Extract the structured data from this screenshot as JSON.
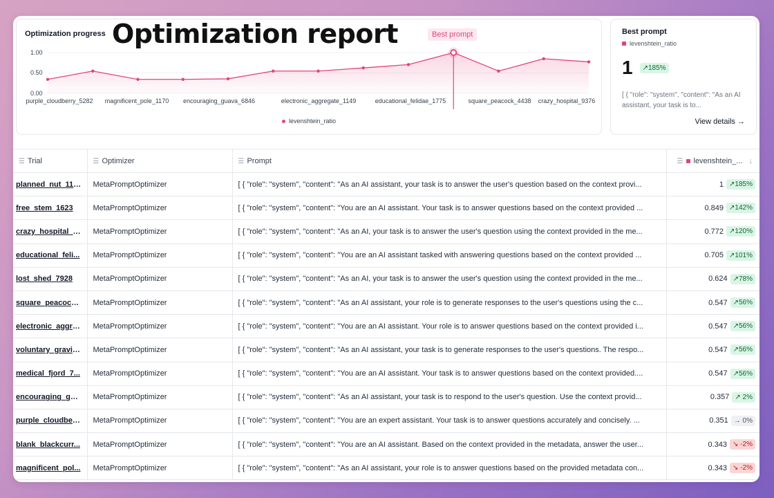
{
  "overlay_title": "Optimization report",
  "chart_panel": {
    "title": "Optimization progress",
    "best_badge": "Best prompt",
    "legend": "levenshtein_ratio"
  },
  "chart_data": {
    "type": "area",
    "title": "Optimization progress",
    "series": [
      {
        "name": "levenshtein_ratio",
        "values": [
          0.343,
          0.547,
          0.343,
          0.343,
          0.357,
          0.547,
          0.547,
          0.624,
          0.705,
          1.0,
          0.547,
          0.849,
          0.772
        ]
      }
    ],
    "xtick_labels": [
      "purple_cloudberry_5282",
      "magnificent_pole_1170",
      "encouraging_guava_6846",
      "electronic_aggregate_1149",
      "educational_felidae_1775",
      "square_peacock_4438",
      "crazy_hospital_9376"
    ],
    "ytick_labels": [
      "1.00",
      "0.50",
      "0.00"
    ],
    "ylim": [
      0,
      1
    ],
    "best_index": 9,
    "legend_position": "bottom"
  },
  "best_panel": {
    "title": "Best prompt",
    "metric": "levenshtein_ratio",
    "value": "1",
    "change": "↗185%",
    "prompt": "[ { \"role\": \"system\", \"content\": \"As an AI assistant, your task is to...",
    "link": "View details →"
  },
  "table": {
    "headers": {
      "trial": "Trial",
      "optimizer": "Optimizer",
      "prompt": "Prompt",
      "metric": "levenshtein_..."
    },
    "rows": [
      {
        "trial": "planned_nut_1124",
        "optimizer": "MetaPromptOptimizer",
        "prompt": "[ { \"role\": \"system\", \"content\": \"As an AI assistant, your task is to answer the user's question based on the context provi...",
        "value": "1",
        "change": "↗185%",
        "trend": "up"
      },
      {
        "trial": "free_stem_1623",
        "optimizer": "MetaPromptOptimizer",
        "prompt": "[ { \"role\": \"system\", \"content\": \"You are an AI assistant. Your task is to answer questions based on the context provided ...",
        "value": "0.849",
        "change": "↗142%",
        "trend": "up"
      },
      {
        "trial": "crazy_hospital_9...",
        "optimizer": "MetaPromptOptimizer",
        "prompt": "[ { \"role\": \"system\", \"content\": \"As an AI, your task is to answer the user's question using the context provided in the me...",
        "value": "0.772",
        "change": "↗120%",
        "trend": "up"
      },
      {
        "trial": "educational_feli...",
        "optimizer": "MetaPromptOptimizer",
        "prompt": "[ { \"role\": \"system\", \"content\": \"You are an AI assistant tasked with answering questions based on the context provided ...",
        "value": "0.705",
        "change": "↗101%",
        "trend": "up"
      },
      {
        "trial": "lost_shed_7928",
        "optimizer": "MetaPromptOptimizer",
        "prompt": "[ { \"role\": \"system\", \"content\": \"As an AI, your task is to answer the user's question using the context provided in the me...",
        "value": "0.624",
        "change": "↗78%",
        "trend": "up"
      },
      {
        "trial": "square_peacock...",
        "optimizer": "MetaPromptOptimizer",
        "prompt": "[ { \"role\": \"system\", \"content\": \"As an AI assistant, your role is to generate responses to the user's questions using the c...",
        "value": "0.547",
        "change": "↗56%",
        "trend": "up"
      },
      {
        "trial": "electronic_aggre...",
        "optimizer": "MetaPromptOptimizer",
        "prompt": "[ { \"role\": \"system\", \"content\": \"You are an AI assistant. Your role is to answer questions based on the context provided i...",
        "value": "0.547",
        "change": "↗56%",
        "trend": "up"
      },
      {
        "trial": "voluntary_gravit...",
        "optimizer": "MetaPromptOptimizer",
        "prompt": "[ { \"role\": \"system\", \"content\": \"As an AI assistant, your task is to generate responses to the user's questions. The respo...",
        "value": "0.547",
        "change": "↗56%",
        "trend": "up"
      },
      {
        "trial": "medical_fjord_7...",
        "optimizer": "MetaPromptOptimizer",
        "prompt": "[ { \"role\": \"system\", \"content\": \"You are an AI assistant. Your task is to answer questions based on the context provided....",
        "value": "0.547",
        "change": "↗56%",
        "trend": "up"
      },
      {
        "trial": "encouraging_gu...",
        "optimizer": "MetaPromptOptimizer",
        "prompt": "[ { \"role\": \"system\", \"content\": \"As an AI assistant, your task is to respond to the user's question. Use the context provid...",
        "value": "0.357",
        "change": "↗ 2%",
        "trend": "up"
      },
      {
        "trial": "purple_cloudber...",
        "optimizer": "MetaPromptOptimizer",
        "prompt": "[ { \"role\": \"system\", \"content\": \"You are an expert assistant. Your task is to answer questions accurately and concisely. ...",
        "value": "0.351",
        "change": "→ 0%",
        "trend": "flat"
      },
      {
        "trial": "blank_blackcurr...",
        "optimizer": "MetaPromptOptimizer",
        "prompt": "[ { \"role\": \"system\", \"content\": \"You are an AI assistant. Based on the context provided in the metadata, answer the user...",
        "value": "0.343",
        "change": "↘ -2%",
        "trend": "down"
      },
      {
        "trial": "magnificent_pol...",
        "optimizer": "MetaPromptOptimizer",
        "prompt": "[ { \"role\": \"system\", \"content\": \"As an AI assistant, your role is to answer questions based on the provided metadata con...",
        "value": "0.343",
        "change": "↘ -2%",
        "trend": "down"
      }
    ]
  },
  "colors": {
    "accent": "#e0457b",
    "up": "#d9f5e5",
    "down": "#fbd5d5"
  }
}
